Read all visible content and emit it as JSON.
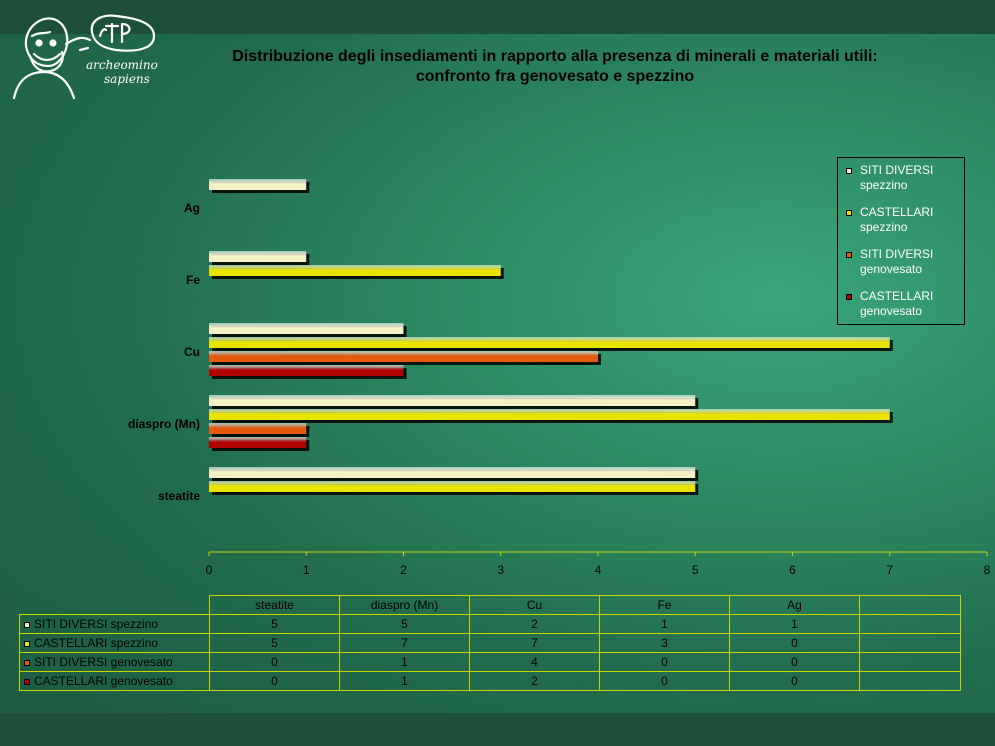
{
  "title": {
    "line1": "Distribuzione degli insediamenti in rapporto alla presenza di minerali e materiali utili:",
    "line2": "confronto fra genovesato e spezzino"
  },
  "logo": {
    "line1": "archeomino",
    "line2": "sapiens"
  },
  "colors": {
    "background": "#2d8a63",
    "series": [
      "#f4f1c4",
      "#e8e400",
      "#e65a10",
      "#b00000"
    ]
  },
  "chart_data": {
    "type": "bar",
    "orientation": "horizontal",
    "categories": [
      "steatite",
      "diaspro (Mn)",
      "Cu",
      "Fe",
      "Ag"
    ],
    "series": [
      {
        "name": "SITI DIVERSI spezzino",
        "values": [
          5,
          5,
          2,
          1,
          1
        ]
      },
      {
        "name": "CASTELLARI spezzino",
        "values": [
          5,
          7,
          7,
          3,
          0
        ]
      },
      {
        "name": "SITI DIVERSI genovesato",
        "values": [
          0,
          1,
          4,
          0,
          0
        ]
      },
      {
        "name": "CASTELLARI genovesato",
        "values": [
          0,
          1,
          2,
          0,
          0
        ]
      }
    ],
    "xlim": [
      0,
      8
    ],
    "xticks": [
      "0",
      "1",
      "2",
      "3",
      "4",
      "5",
      "6",
      "7",
      "8"
    ],
    "legend_position": "right",
    "legend_labels": [
      "SITI DIVERSI\nspezzino",
      "CASTELLARI\nspezzino",
      "SITI DIVERSI\ngenovesato",
      "CASTELLARI\ngenovesato"
    ],
    "data_table": true
  }
}
